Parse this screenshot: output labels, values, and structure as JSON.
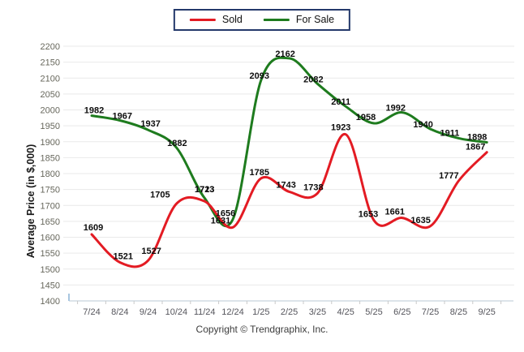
{
  "legend": {
    "items": [
      {
        "label": "Sold",
        "color": "#e31b23"
      },
      {
        "label": "For Sale",
        "color": "#1e7b1e"
      }
    ]
  },
  "chart_data": {
    "type": "line",
    "title": "",
    "ylabel": "Average Price (in $,000)",
    "xlabel": "",
    "ylim": [
      1400,
      2200
    ],
    "ytick_step": 50,
    "grid": true,
    "legend_position": "top",
    "categories": [
      "7/24",
      "8/24",
      "9/24",
      "10/24",
      "11/24",
      "12/24",
      "1/25",
      "2/25",
      "3/25",
      "4/25",
      "5/25",
      "6/25",
      "7/25",
      "8/25",
      "9/25"
    ],
    "series": [
      {
        "name": "Sold",
        "color": "#e31b23",
        "values": [
          1609,
          1521,
          1527,
          1705,
          1713,
          1631,
          1785,
          1743,
          1738,
          1923,
          1653,
          1661,
          1635,
          1777,
          1867
        ]
      },
      {
        "name": "For Sale",
        "color": "#1e7b1e",
        "values": [
          1982,
          1967,
          1937,
          1882,
          1723,
          1656,
          2093,
          2162,
          2082,
          2011,
          1958,
          1992,
          1940,
          1911,
          1898
        ]
      }
    ]
  },
  "footer": {
    "copyright": "Copyright © Trendgraphix, Inc."
  },
  "colors": {
    "grid_line": "#e9e9e9",
    "axis_line": "#b9c8d6",
    "tick_mark": "#c9c9c9",
    "y_tick_label": "#67675c",
    "x_tick_label": "#55555c",
    "data_label": "#0d0d0d",
    "axis_title": "#1a1a1a",
    "legend_border": "#24396b"
  }
}
